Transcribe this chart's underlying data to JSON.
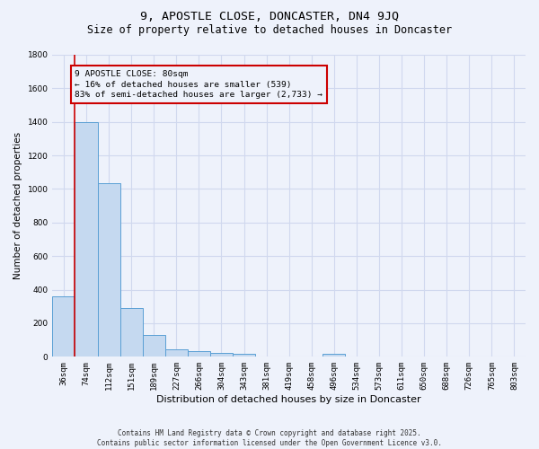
{
  "title1": "9, APOSTLE CLOSE, DONCASTER, DN4 9JQ",
  "title2": "Size of property relative to detached houses in Doncaster",
  "xlabel": "Distribution of detached houses by size in Doncaster",
  "ylabel": "Number of detached properties",
  "categories": [
    "36sqm",
    "74sqm",
    "112sqm",
    "151sqm",
    "189sqm",
    "227sqm",
    "266sqm",
    "304sqm",
    "343sqm",
    "381sqm",
    "419sqm",
    "458sqm",
    "496sqm",
    "534sqm",
    "573sqm",
    "611sqm",
    "650sqm",
    "688sqm",
    "726sqm",
    "765sqm",
    "803sqm"
  ],
  "values": [
    360,
    1400,
    1035,
    290,
    130,
    42,
    35,
    22,
    17,
    0,
    0,
    0,
    17,
    0,
    0,
    0,
    0,
    0,
    0,
    0,
    0
  ],
  "bar_color": "#c5d9f0",
  "bar_edge_color": "#5a9fd4",
  "vline_x": 0.5,
  "vline_color": "#cc0000",
  "annotation_text": "9 APOSTLE CLOSE: 80sqm\n← 16% of detached houses are smaller (539)\n83% of semi-detached houses are larger (2,733) →",
  "annotation_box_color": "#cc0000",
  "ylim": [
    0,
    1800
  ],
  "yticks": [
    0,
    200,
    400,
    600,
    800,
    1000,
    1200,
    1400,
    1600,
    1800
  ],
  "footer": "Contains HM Land Registry data © Crown copyright and database right 2025.\nContains public sector information licensed under the Open Government Licence v3.0.",
  "bg_color": "#eef2fb",
  "grid_color": "#d0d8ee",
  "title_fontsize": 9.5,
  "subtitle_fontsize": 8.5,
  "tick_fontsize": 6.5,
  "ylabel_fontsize": 7.5,
  "xlabel_fontsize": 8
}
